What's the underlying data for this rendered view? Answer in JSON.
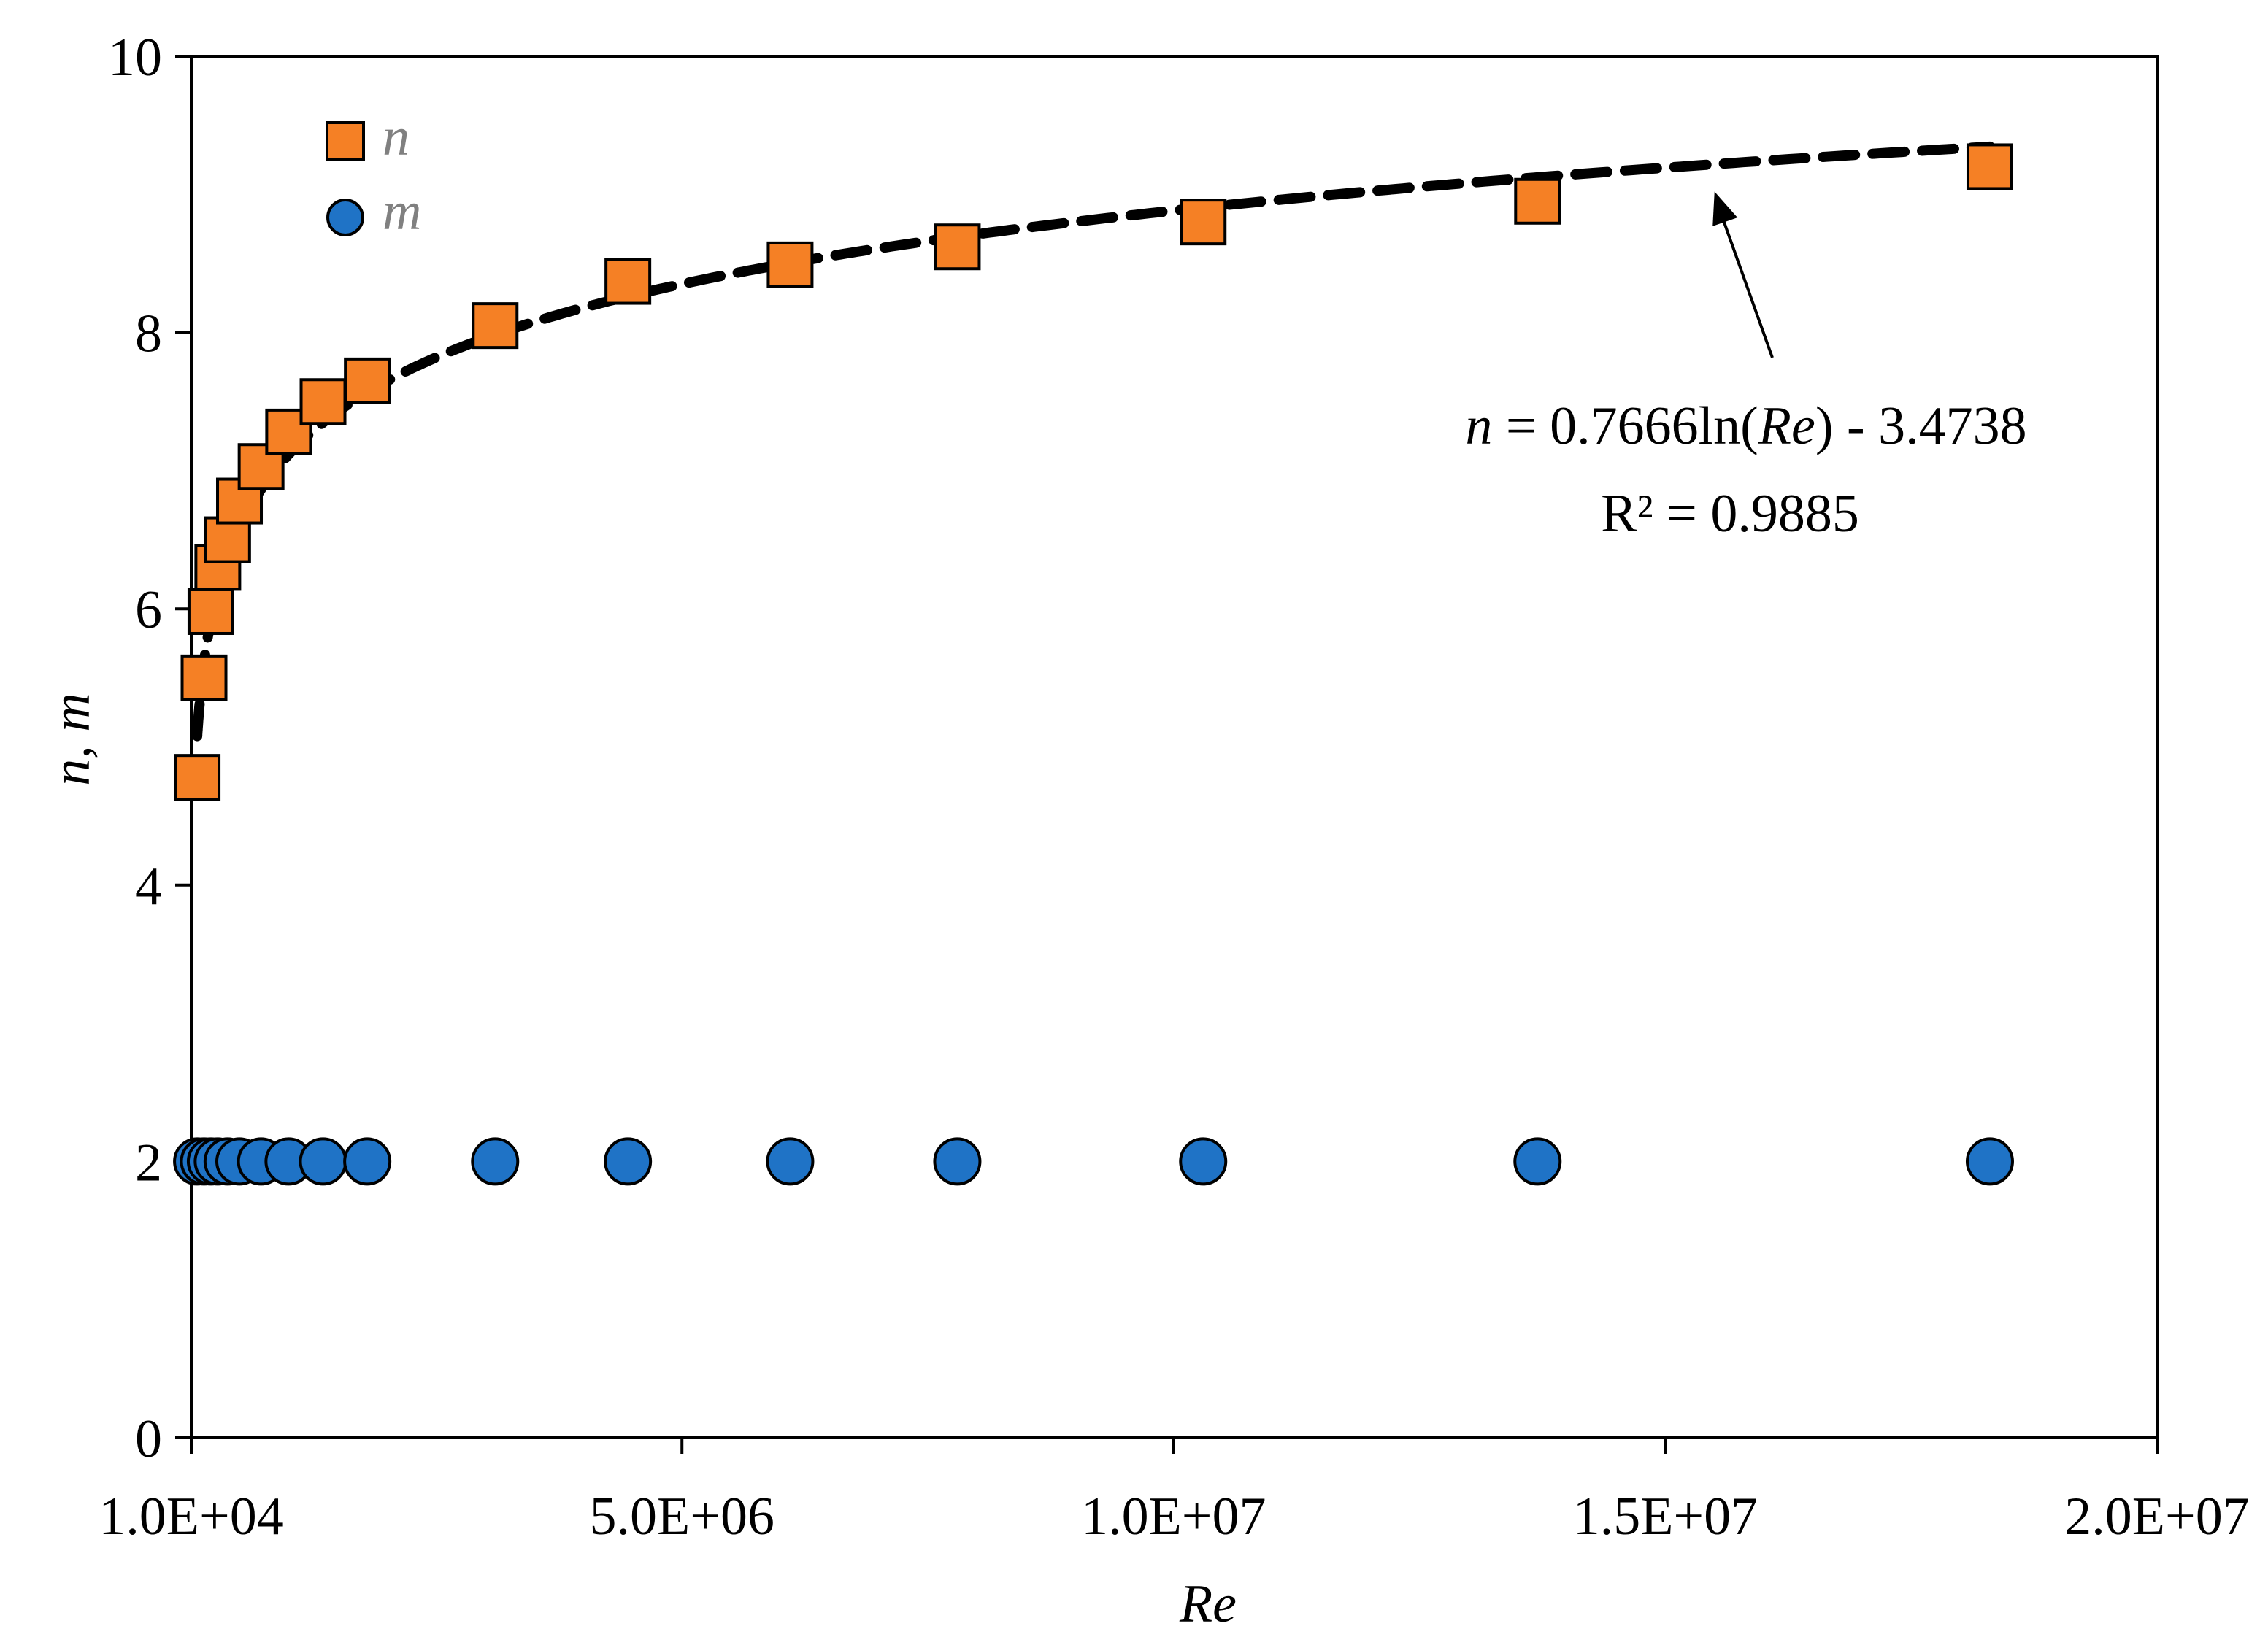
{
  "chart_data": {
    "type": "scatter",
    "title": "",
    "xlabel": "Re",
    "ylabel": "n, m",
    "xlim": [
      10000,
      20000000
    ],
    "ylim": [
      0,
      10
    ],
    "xticks": [
      10000,
      5000000,
      10000000,
      15000000,
      20000000
    ],
    "xtick_labels": [
      "1.0E+04",
      "5.0E+06",
      "1.0E+07",
      "1.5E+07",
      "2.0E+07"
    ],
    "yticks": [
      0,
      2,
      4,
      6,
      8,
      10
    ],
    "ytick_labels": [
      "0",
      "2",
      "4",
      "6",
      "8",
      "10"
    ],
    "grid": false,
    "legend_position": "top-left",
    "series": [
      {
        "name": "n",
        "marker": "square",
        "color": "#F58025",
        "x": [
          70000,
          140000,
          210000,
          280000,
          380000,
          500000,
          720000,
          1000000,
          1350000,
          1800000,
          3100000,
          4450000,
          6100000,
          7800000,
          10300000,
          13700000,
          18300000
        ],
        "y": [
          4.78,
          5.5,
          5.98,
          6.3,
          6.5,
          6.78,
          7.03,
          7.28,
          7.5,
          7.65,
          8.05,
          8.37,
          8.49,
          8.62,
          8.8,
          8.95,
          9.2
        ]
      },
      {
        "name": "m",
        "marker": "circle",
        "color": "#1F73C6",
        "x": [
          70000,
          140000,
          210000,
          280000,
          380000,
          500000,
          720000,
          1000000,
          1350000,
          1800000,
          3100000,
          4450000,
          6100000,
          7800000,
          10300000,
          13700000,
          18300000
        ],
        "y": [
          2,
          2,
          2,
          2,
          2,
          2,
          2,
          2,
          2,
          2,
          2,
          2,
          2,
          2,
          2,
          2,
          2
        ]
      }
    ],
    "trendline": {
      "series": "n",
      "kind": "logarithmic",
      "a": 0.7666,
      "b": -3.4738,
      "x_range": [
        70000,
        18300000
      ],
      "style": "dashed",
      "color": "#000000"
    },
    "annotation": {
      "equation_var": "n",
      "equation_mid": " = 0.7666ln(",
      "equation_re": "Re",
      "equation_tail": ") - 3.4738",
      "r2": "R² = 0.9885",
      "arrow_target": [
        15500000,
        9.2
      ]
    }
  }
}
